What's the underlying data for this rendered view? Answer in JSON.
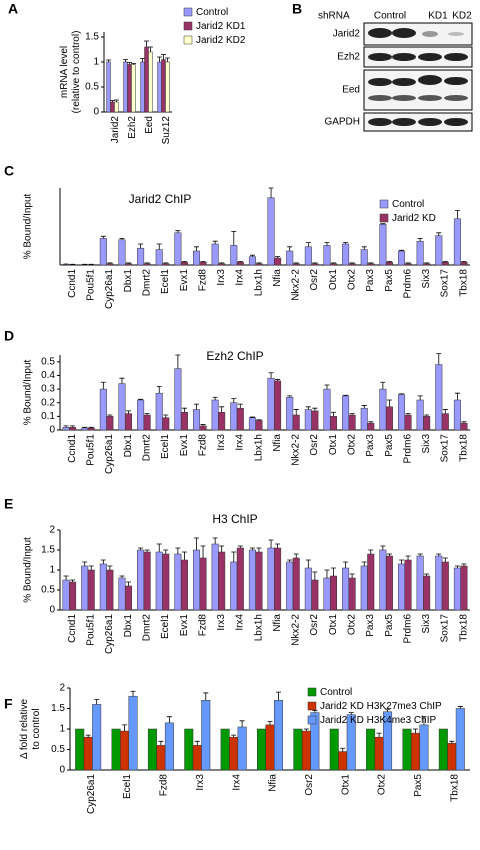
{
  "chart_data": [
    {
      "type": "bar",
      "panel": "A",
      "ylabel": "mRNA level\n(relative to control)",
      "categories": [
        "Jarid2",
        "Ezh2",
        "Eed",
        "Suz12"
      ],
      "ylim": [
        0,
        1.6
      ],
      "yticks": [
        0,
        0.5,
        1,
        1.5
      ],
      "legend": "upper right",
      "series": [
        {
          "name": "Control",
          "color": "#9999ff",
          "values": [
            1.0,
            1.0,
            1.0,
            1.0
          ],
          "errors": [
            0.04,
            0.05,
            0.07,
            0.1
          ]
        },
        {
          "name": "Jarid2 KD1",
          "color": "#993366",
          "values": [
            0.2,
            0.95,
            1.3,
            1.05
          ],
          "errors": [
            0.03,
            0.04,
            0.12,
            0.1
          ]
        },
        {
          "name": "Jarid2 KD2",
          "color": "#ffffcc",
          "values": [
            0.2,
            0.95,
            1.2,
            1.0
          ],
          "errors": [
            0.04,
            0.02,
            0.1,
            0.08
          ]
        }
      ]
    },
    {
      "type": "bar",
      "panel": "C",
      "title": "Jarid2 ChIP",
      "ylabel": "% Bound/Input",
      "categories": [
        "Ccnd1",
        "Pou5f1",
        "Cyp26a1",
        "Dbx1",
        "Dmrt2",
        "Ecel1",
        "Evx1",
        "Fzd8",
        "Irx3",
        "Irx4",
        "Lbx1h",
        "Nfia",
        "Nkx2-2",
        "Osr2",
        "Otx1",
        "Otx2",
        "Pax3",
        "Pax5",
        "Prdm6",
        "Six3",
        "Sox17",
        "Tbx18"
      ],
      "ylim": [
        0,
        0.55
      ],
      "yticks": [],
      "legend": "upper right",
      "series": [
        {
          "name": "Control",
          "color": "#9999ff",
          "values": [
            0.005,
            0.003,
            0.19,
            0.18,
            0.12,
            0.11,
            0.23,
            0.1,
            0.15,
            0.14,
            0.06,
            0.48,
            0.1,
            0.13,
            0.14,
            0.15,
            0.11,
            0.29,
            0.1,
            0.17,
            0.21,
            0.33
          ],
          "errors": [
            0.002,
            0.002,
            0.015,
            0.01,
            0.03,
            0.04,
            0.015,
            0.03,
            0.02,
            0.1,
            0.01,
            0.07,
            0.03,
            0.03,
            0.02,
            0.01,
            0.02,
            0.005,
            0.005,
            0.02,
            0.02,
            0.06
          ]
        },
        {
          "name": "Jarid2 KD",
          "color": "#993366",
          "values": [
            0.003,
            0.003,
            0.01,
            0.01,
            0.01,
            0.01,
            0.02,
            0.02,
            0.01,
            0.02,
            0.01,
            0.05,
            0.01,
            0.01,
            0.01,
            0.01,
            0.01,
            0.02,
            0.01,
            0.01,
            0.02,
            0.02
          ],
          "errors": [
            0.002,
            0.002,
            0.005,
            0.005,
            0.005,
            0.005,
            0.005,
            0.005,
            0.005,
            0.005,
            0.005,
            0.01,
            0.005,
            0.005,
            0.005,
            0.005,
            0.005,
            0.005,
            0.005,
            0.005,
            0.005,
            0.005
          ]
        }
      ]
    },
    {
      "type": "bar",
      "panel": "D",
      "title": "Ezh2 ChIP",
      "ylabel": "% Bound/Input",
      "categories": [
        "Ccnd1",
        "Pou5f1",
        "Cyp26a1",
        "Dbx1",
        "Dmrt2",
        "Ecel1",
        "Evx1",
        "Fzd8",
        "Irx3",
        "Irx4",
        "Lbx1h",
        "Nfia",
        "Nkx2-2",
        "Osr2",
        "Otx1",
        "Otx2",
        "Pax3",
        "Pax5",
        "Prdm6",
        "Six3",
        "Sox17",
        "Tbx18"
      ],
      "ylim": [
        0,
        0.55
      ],
      "yticks": [
        0,
        0.1,
        0.2,
        0.3,
        0.4,
        0.5
      ],
      "series": [
        {
          "name": "Control",
          "color": "#9999ff",
          "values": [
            0.02,
            0.015,
            0.3,
            0.34,
            0.22,
            0.27,
            0.45,
            0.15,
            0.22,
            0.2,
            0.09,
            0.38,
            0.24,
            0.15,
            0.3,
            0.25,
            0.16,
            0.3,
            0.26,
            0.22,
            0.48,
            0.22
          ],
          "errors": [
            0.01,
            0.005,
            0.05,
            0.04,
            0.005,
            0.05,
            0.1,
            0.04,
            0.02,
            0.03,
            0.005,
            0.04,
            0.01,
            0.02,
            0.03,
            0.005,
            0.02,
            0.05,
            0.005,
            0.03,
            0.08,
            0.05
          ]
        },
        {
          "name": "Jarid2 KD",
          "color": "#993366",
          "values": [
            0.02,
            0.015,
            0.1,
            0.12,
            0.11,
            0.09,
            0.13,
            0.03,
            0.13,
            0.16,
            0.07,
            0.36,
            0.11,
            0.14,
            0.1,
            0.11,
            0.05,
            0.17,
            0.11,
            0.1,
            0.12,
            0.05
          ],
          "errors": [
            0.01,
            0.005,
            0.01,
            0.02,
            0.01,
            0.02,
            0.03,
            0.01,
            0.04,
            0.03,
            0.005,
            0.01,
            0.04,
            0.02,
            0.03,
            0.01,
            0.01,
            0.05,
            0.01,
            0.01,
            0.03,
            0.01
          ]
        }
      ]
    },
    {
      "type": "bar",
      "panel": "E",
      "title": "H3 ChIP",
      "ylabel": "% Bound/Input",
      "categories": [
        "Ccnd1",
        "Pou5f1",
        "Cyp26a1",
        "Dbx1",
        "Dmrt2",
        "Ecel1",
        "Evx1",
        "Fzd8",
        "Irx3",
        "Irx4",
        "Lbx1h",
        "Nfia",
        "Nkx2-2",
        "Osr2",
        "Otx1",
        "Otx2",
        "Pax3",
        "Pax5",
        "Prdm6",
        "Six3",
        "Sox17",
        "Tbx18"
      ],
      "ylim": [
        0,
        2
      ],
      "yticks": [
        0,
        0.5,
        1,
        1.5,
        2
      ],
      "series": [
        {
          "name": "Control",
          "color": "#9999ff",
          "values": [
            0.75,
            1.1,
            1.15,
            0.8,
            1.5,
            1.45,
            1.4,
            1.5,
            1.65,
            1.2,
            1.5,
            1.55,
            1.2,
            1.05,
            0.8,
            1.05,
            1.1,
            1.5,
            1.15,
            1.35,
            1.35,
            1.05
          ],
          "errors": [
            0.1,
            0.1,
            0.1,
            0.05,
            0.05,
            0.2,
            0.15,
            0.3,
            0.15,
            0.25,
            0.05,
            0.2,
            0.05,
            0.2,
            0.2,
            0.15,
            0.1,
            0.1,
            0.1,
            0.05,
            0.05,
            0.05
          ]
        },
        {
          "name": "Jarid2 KD",
          "color": "#993366",
          "values": [
            0.7,
            1.0,
            1.0,
            0.6,
            1.45,
            1.4,
            1.25,
            1.3,
            1.45,
            1.55,
            1.45,
            1.55,
            1.3,
            0.75,
            0.85,
            0.8,
            1.4,
            1.35,
            1.25,
            0.85,
            1.2,
            1.1
          ],
          "errors": [
            0.05,
            0.1,
            0.1,
            0.1,
            0.05,
            0.1,
            0.2,
            0.3,
            0.15,
            0.05,
            0.1,
            0.1,
            0.1,
            0.2,
            0.2,
            0.1,
            0.1,
            0.05,
            0.1,
            0.05,
            0.1,
            0.05
          ]
        }
      ]
    },
    {
      "type": "bar",
      "panel": "F",
      "ylabel": "Δ fold  relative\nto control",
      "categories": [
        "Cyp26a1",
        "Ecel1",
        "Fzd8",
        "Irx3",
        "Irx4",
        "Nfia",
        "Osr2",
        "Otx1",
        "Otx2",
        "Pax5",
        "Tbx18"
      ],
      "ylim": [
        0,
        2
      ],
      "yticks": [
        0,
        0.5,
        1,
        1.5,
        2
      ],
      "legend": "upper right",
      "series": [
        {
          "name": "Control",
          "color": "#009900",
          "values": [
            1,
            1,
            1,
            1,
            1,
            1,
            1,
            1,
            1,
            1,
            1
          ]
        },
        {
          "name": "Jarid2 KD H3K27me3 ChIP",
          "color": "#cc3300",
          "values": [
            0.8,
            0.95,
            0.6,
            0.6,
            0.8,
            1.1,
            0.95,
            0.45,
            0.8,
            0.9,
            0.65
          ],
          "errors": [
            0.05,
            0.15,
            0.1,
            0.1,
            0.05,
            0.08,
            0.05,
            0.08,
            0.1,
            0.1,
            0.05
          ]
        },
        {
          "name": "Jarid2 KD H3K4me3 ChIP",
          "color": "#6699ff",
          "values": [
            1.6,
            1.8,
            1.15,
            1.7,
            1.05,
            1.7,
            1.4,
            1.35,
            1.42,
            1.1,
            1.5
          ],
          "errors": [
            0.12,
            0.12,
            0.15,
            0.18,
            0.15,
            0.2,
            0.05,
            0.05,
            0.05,
            0.2,
            0.05
          ]
        }
      ]
    }
  ],
  "blot": {
    "panel": "B",
    "header": "shRNA",
    "lanes": [
      "Control",
      "KD1",
      "KD2"
    ],
    "rows": [
      "Jarid2",
      "Ezh2",
      "Eed",
      "GAPDH"
    ]
  }
}
